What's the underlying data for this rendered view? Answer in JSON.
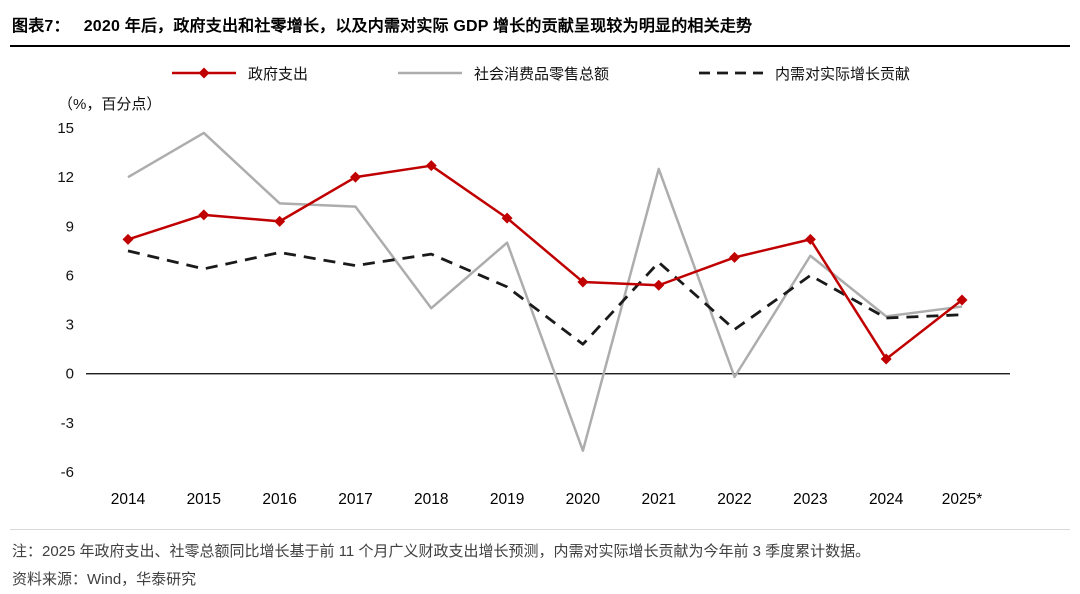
{
  "header": {
    "label": "图表7：",
    "title": "2020 年后，政府支出和社零增长，以及内需对实际 GDP 增长的贡献呈现较为明显的相关走势"
  },
  "chart_data": {
    "type": "line",
    "unit_label": "（%，百分点）",
    "categories": [
      "2014",
      "2015",
      "2016",
      "2017",
      "2018",
      "2019",
      "2020",
      "2021",
      "2022",
      "2023",
      "2024",
      "2025*"
    ],
    "series": [
      {
        "name": "政府支出",
        "color": "#c00000",
        "marker": "diamond",
        "dash": false,
        "values": [
          8.2,
          9.7,
          9.3,
          12.0,
          12.7,
          9.5,
          5.6,
          5.4,
          7.1,
          8.2,
          0.9,
          4.5
        ]
      },
      {
        "name": "社会消费品零售总额",
        "color": "#adadad",
        "marker": "none",
        "dash": false,
        "values": [
          12.0,
          14.7,
          10.4,
          10.2,
          4.0,
          8.0,
          -4.7,
          12.5,
          -0.2,
          7.2,
          3.5,
          4.1
        ]
      },
      {
        "name": "内需对实际增长贡献",
        "color": "#1a1a1a",
        "marker": "none",
        "dash": true,
        "values": [
          7.5,
          6.4,
          7.4,
          6.6,
          7.3,
          5.3,
          1.8,
          6.8,
          2.7,
          6.0,
          3.4,
          3.6
        ]
      }
    ],
    "ylim": [
      -6,
      15
    ],
    "yticks": [
      15,
      12,
      9,
      6,
      3,
      0,
      -3,
      -6
    ],
    "legend_position": "top",
    "grid": "off"
  },
  "footer": {
    "note": "注：2025 年政府支出、社零总额同比增长基于前 11 个月广义财政支出增长预测，内需对实际增长贡献为今年前 3 季度累计数据。",
    "source": "资料来源：Wind，华泰研究"
  }
}
